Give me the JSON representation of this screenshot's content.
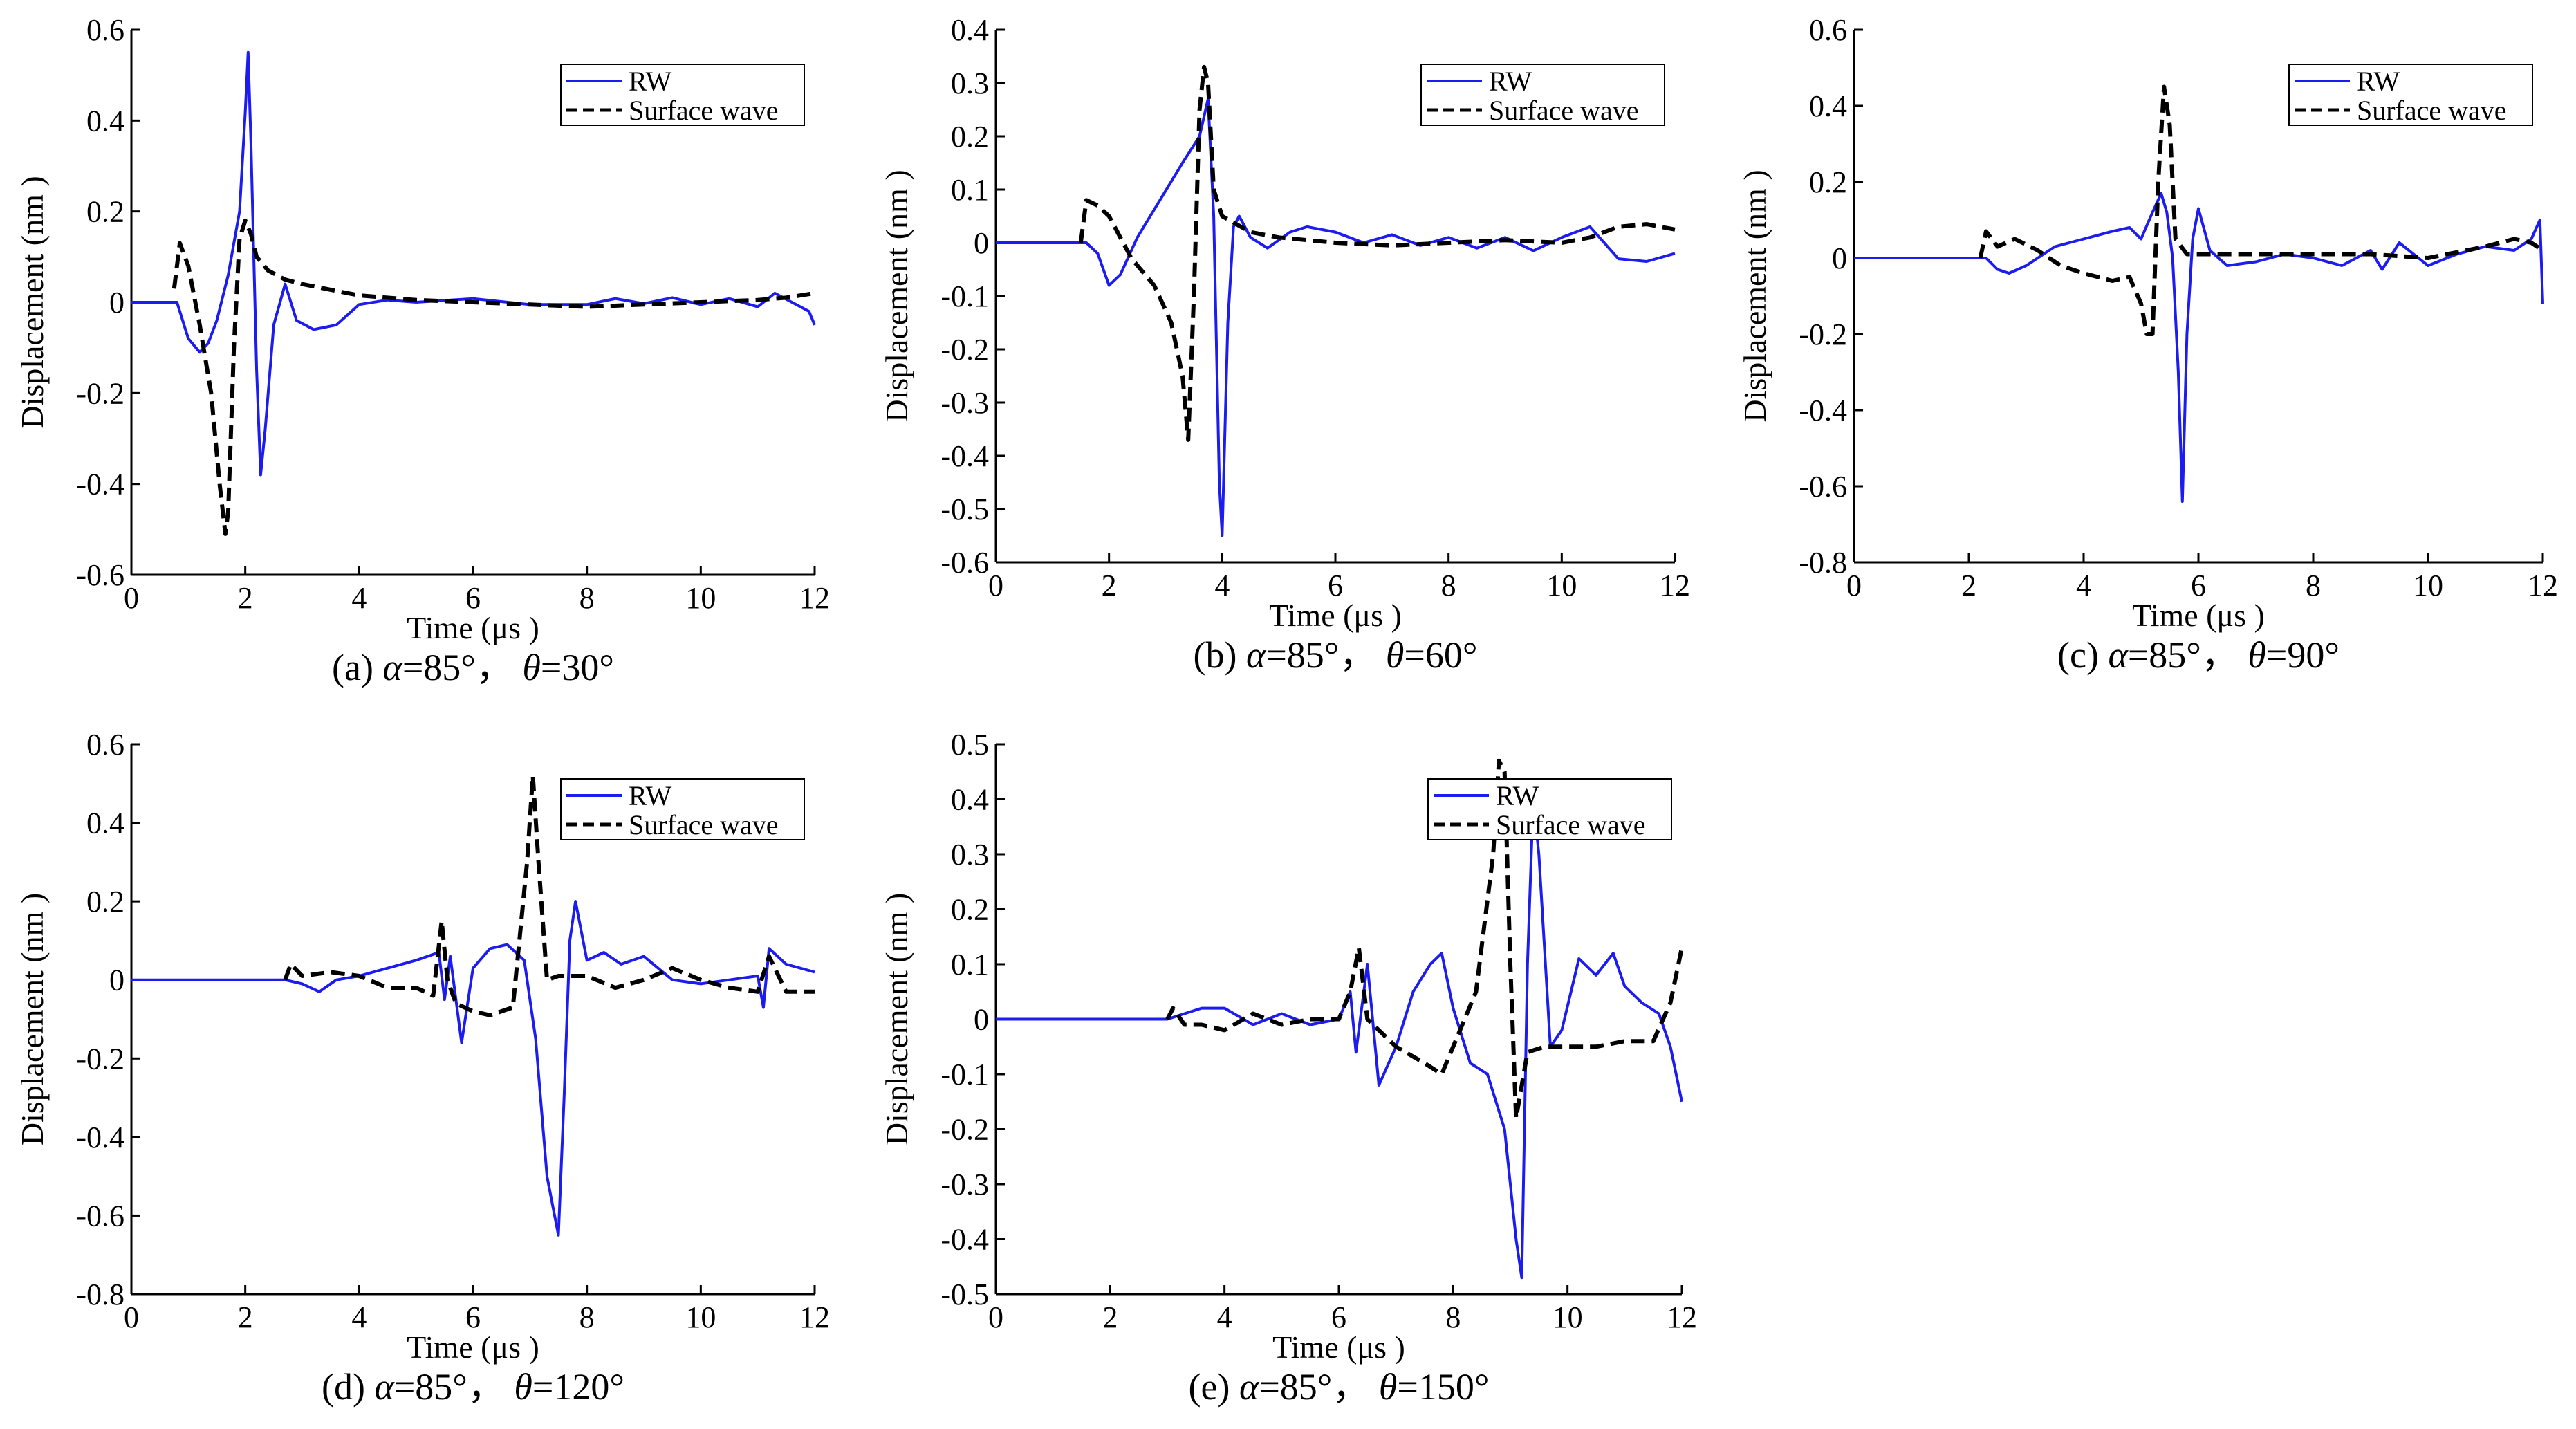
{
  "colors": {
    "rw": "#1c1cf0",
    "surface": "#000000",
    "axis": "#000000"
  },
  "chart_data": [
    {
      "type": "line",
      "caption_prefix": "(a) ",
      "caption_alpha": "α",
      "caption_mid": "=85°，  ",
      "caption_theta": "θ",
      "caption_suffix": "=30°",
      "xlabel": "Time (μs )",
      "ylabel": "Displacement (nm )",
      "xlim": [
        0,
        12
      ],
      "ylim": [
        -0.6,
        0.6
      ],
      "xticks": [
        0,
        2,
        4,
        6,
        8,
        10,
        12
      ],
      "xtick_labels": [
        "0",
        "2",
        "4",
        "6",
        "8",
        "10",
        "12"
      ],
      "yticks": [
        -0.6,
        -0.4,
        -0.2,
        0,
        0.2,
        0.4,
        0.6
      ],
      "ytick_labels": [
        "-0.6",
        "-0.4",
        "-0.2",
        "0",
        "0.2",
        "0.4",
        "0.6"
      ],
      "legend_position": "top-right",
      "series": [
        {
          "name": "RW",
          "style": "solid",
          "x": [
            0,
            0.8,
            1.0,
            1.2,
            1.35,
            1.5,
            1.7,
            1.9,
            2.0,
            2.05,
            2.1,
            2.2,
            2.27,
            2.35,
            2.5,
            2.7,
            2.9,
            3.2,
            3.6,
            4.0,
            4.5,
            5,
            6,
            7,
            8,
            8.5,
            9,
            9.5,
            10,
            10.5,
            11,
            11.3,
            11.6,
            11.9,
            12
          ],
          "values": [
            0,
            0,
            -0.08,
            -0.11,
            -0.09,
            -0.04,
            0.06,
            0.2,
            0.42,
            0.55,
            0.35,
            -0.15,
            -0.38,
            -0.28,
            -0.05,
            0.04,
            -0.04,
            -0.06,
            -0.05,
            -0.005,
            0.005,
            0,
            0.008,
            -0.005,
            -0.005,
            0.008,
            -0.003,
            0.01,
            -0.005,
            0.008,
            -0.01,
            0.02,
            0,
            -0.02,
            -0.05
          ]
        },
        {
          "name": "Surface wave",
          "style": "dashed",
          "x": [
            0.75,
            0.85,
            1.0,
            1.2,
            1.4,
            1.55,
            1.65,
            1.7,
            1.8,
            1.9,
            2.0,
            2.1,
            2.2,
            2.4,
            2.7,
            3.0,
            4.0,
            5,
            6,
            7,
            8,
            9,
            10,
            11,
            11.5,
            12
          ],
          "values": [
            0.03,
            0.13,
            0.08,
            -0.05,
            -0.2,
            -0.4,
            -0.51,
            -0.46,
            -0.1,
            0.14,
            0.18,
            0.15,
            0.1,
            0.07,
            0.05,
            0.04,
            0.015,
            0.005,
            0,
            -0.005,
            -0.01,
            -0.005,
            0,
            0.005,
            0.01,
            0.02
          ]
        }
      ]
    },
    {
      "type": "line",
      "caption_prefix": "(b) ",
      "caption_alpha": "α",
      "caption_mid": "=85°，  ",
      "caption_theta": "θ",
      "caption_suffix": "=60°",
      "xlabel": "Time (μs )",
      "ylabel": "Displacement (nm )",
      "xlim": [
        0,
        12
      ],
      "ylim": [
        -0.6,
        0.4
      ],
      "xticks": [
        0,
        2,
        4,
        6,
        8,
        10,
        12
      ],
      "xtick_labels": [
        "0",
        "2",
        "4",
        "6",
        "8",
        "10",
        "12"
      ],
      "yticks": [
        -0.6,
        -0.5,
        -0.4,
        -0.3,
        -0.2,
        -0.1,
        0,
        0.1,
        0.2,
        0.3,
        0.4
      ],
      "ytick_labels": [
        "-0.6",
        "-0.5",
        "-0.4",
        "-0.3",
        "-0.2",
        "-0.1",
        "0",
        "0.1",
        "0.2",
        "0.3",
        "0.4"
      ],
      "legend_position": "top-right",
      "series": [
        {
          "name": "RW",
          "style": "solid",
          "x": [
            0,
            1.6,
            1.8,
            2.0,
            2.2,
            2.5,
            2.9,
            3.3,
            3.6,
            3.75,
            3.85,
            3.95,
            4.0,
            4.1,
            4.2,
            4.3,
            4.5,
            4.8,
            5.2,
            5.5,
            6,
            6.5,
            7,
            7.5,
            8,
            8.5,
            9,
            9.5,
            10,
            10.5,
            11,
            11.5,
            12
          ],
          "values": [
            0,
            0,
            -0.02,
            -0.08,
            -0.06,
            0.01,
            0.08,
            0.15,
            0.2,
            0.27,
            0.05,
            -0.45,
            -0.55,
            -0.15,
            0.03,
            0.05,
            0.01,
            -0.01,
            0.02,
            0.03,
            0.02,
            0.0,
            0.015,
            -0.005,
            0.01,
            -0.01,
            0.01,
            -0.015,
            0.01,
            0.03,
            -0.03,
            -0.035,
            -0.02
          ]
        },
        {
          "name": "Surface wave",
          "style": "dashed",
          "x": [
            1.5,
            1.6,
            1.8,
            2.0,
            2.4,
            2.8,
            3.1,
            3.3,
            3.4,
            3.5,
            3.6,
            3.68,
            3.75,
            3.85,
            4.0,
            4.5,
            5,
            6,
            7,
            8,
            9,
            10,
            10.5,
            11,
            11.5,
            12
          ],
          "values": [
            0.0,
            0.08,
            0.07,
            0.05,
            -0.03,
            -0.08,
            -0.15,
            -0.25,
            -0.37,
            -0.1,
            0.25,
            0.33,
            0.3,
            0.1,
            0.05,
            0.02,
            0.01,
            0,
            -0.005,
            0,
            0.005,
            0,
            0.01,
            0.03,
            0.035,
            0.025
          ]
        }
      ]
    },
    {
      "type": "line",
      "caption_prefix": "(c) ",
      "caption_alpha": "α",
      "caption_mid": "=85°，  ",
      "caption_theta": "θ",
      "caption_suffix": "=90°",
      "xlabel": "Time (μs )",
      "ylabel": "Displacement (nm )",
      "xlim": [
        0,
        12
      ],
      "ylim": [
        -0.8,
        0.6
      ],
      "xticks": [
        0,
        2,
        4,
        6,
        8,
        10,
        12
      ],
      "xtick_labels": [
        "0",
        "2",
        "4",
        "6",
        "8",
        "10",
        "12"
      ],
      "yticks": [
        -0.8,
        -0.6,
        -0.4,
        -0.2,
        0,
        0.2,
        0.4,
        0.6
      ],
      "ytick_labels": [
        "-0.8",
        "-0.6",
        "-0.4",
        "-0.2",
        "0",
        "0.2",
        "0.4",
        "0.6"
      ],
      "legend_position": "top-right",
      "series": [
        {
          "name": "RW",
          "style": "solid",
          "x": [
            0,
            2.3,
            2.5,
            2.7,
            3.0,
            3.5,
            4.0,
            4.5,
            4.8,
            5.0,
            5.2,
            5.35,
            5.45,
            5.55,
            5.65,
            5.72,
            5.8,
            5.9,
            6.0,
            6.2,
            6.5,
            7,
            7.5,
            8,
            8.5,
            9,
            9.2,
            9.5,
            10,
            10.5,
            11,
            11.5,
            11.8,
            11.95,
            12.0
          ],
          "values": [
            0,
            0,
            -0.03,
            -0.04,
            -0.02,
            0.03,
            0.05,
            0.07,
            0.08,
            0.05,
            0.12,
            0.17,
            0.12,
            0.0,
            -0.3,
            -0.64,
            -0.2,
            0.05,
            0.13,
            0.02,
            -0.02,
            -0.01,
            0.01,
            0.0,
            -0.02,
            0.02,
            -0.03,
            0.04,
            -0.02,
            0.01,
            0.03,
            0.02,
            0.05,
            0.1,
            -0.12
          ]
        },
        {
          "name": "Surface wave",
          "style": "dashed",
          "x": [
            2.2,
            2.3,
            2.5,
            2.8,
            3.2,
            3.6,
            4.0,
            4.5,
            4.8,
            5.0,
            5.1,
            5.2,
            5.3,
            5.4,
            5.5,
            5.6,
            5.8,
            6,
            7,
            8,
            9,
            10,
            11,
            11.5,
            11.8,
            12
          ],
          "values": [
            0.0,
            0.07,
            0.03,
            0.05,
            0.02,
            -0.02,
            -0.04,
            -0.06,
            -0.05,
            -0.12,
            -0.2,
            -0.2,
            0.2,
            0.45,
            0.35,
            0.05,
            0.01,
            0.01,
            0.01,
            0.01,
            0.01,
            0.0,
            0.03,
            0.05,
            0.04,
            0.02
          ]
        }
      ]
    },
    {
      "type": "line",
      "caption_prefix": "(d) ",
      "caption_alpha": "α",
      "caption_mid": "=85°，  ",
      "caption_theta": "θ",
      "caption_suffix": "=120°",
      "xlabel": "Time (μs )",
      "ylabel": "Displacement (nm )",
      "xlim": [
        0,
        12
      ],
      "ylim": [
        -0.8,
        0.6
      ],
      "xticks": [
        0,
        2,
        4,
        6,
        8,
        10,
        12
      ],
      "xtick_labels": [
        "0",
        "2",
        "4",
        "6",
        "8",
        "10",
        "12"
      ],
      "yticks": [
        -0.8,
        -0.6,
        -0.4,
        -0.2,
        0,
        0.2,
        0.4,
        0.6
      ],
      "ytick_labels": [
        "-0.8",
        "-0.6",
        "-0.4",
        "-0.2",
        "0",
        "0.2",
        "0.4",
        "0.6"
      ],
      "legend_position": "top-right",
      "series": [
        {
          "name": "RW",
          "style": "solid",
          "x": [
            0,
            2.7,
            3.0,
            3.3,
            3.6,
            4.0,
            4.5,
            5.0,
            5.4,
            5.5,
            5.6,
            5.7,
            5.8,
            6.0,
            6.3,
            6.6,
            6.9,
            7.1,
            7.3,
            7.5,
            7.6,
            7.7,
            7.8,
            8.0,
            8.3,
            8.6,
            9.0,
            9.5,
            10,
            10.5,
            11,
            11.1,
            11.2,
            11.5,
            12
          ],
          "values": [
            0,
            0,
            -0.01,
            -0.03,
            0.0,
            0.01,
            0.03,
            0.05,
            0.07,
            -0.05,
            0.06,
            -0.05,
            -0.16,
            0.03,
            0.08,
            0.09,
            0.05,
            -0.15,
            -0.5,
            -0.65,
            -0.3,
            0.1,
            0.2,
            0.05,
            0.07,
            0.04,
            0.06,
            0.0,
            -0.01,
            0.0,
            0.01,
            -0.07,
            0.08,
            0.04,
            0.02
          ]
        },
        {
          "name": "Surface wave",
          "style": "dashed",
          "x": [
            2.7,
            2.8,
            3.0,
            3.5,
            4.0,
            4.5,
            5.0,
            5.3,
            5.45,
            5.55,
            5.7,
            6.0,
            6.3,
            6.7,
            6.95,
            7.05,
            7.15,
            7.3,
            7.5,
            8,
            8.5,
            9,
            9.5,
            10,
            10.5,
            11,
            11.2,
            11.5,
            12
          ],
          "values": [
            0.0,
            0.04,
            0.01,
            0.02,
            0.01,
            -0.02,
            -0.02,
            -0.04,
            0.15,
            0.0,
            -0.06,
            -0.08,
            -0.09,
            -0.07,
            0.3,
            0.52,
            0.3,
            0.0,
            0.01,
            0.01,
            -0.02,
            0.0,
            0.03,
            0.0,
            -0.02,
            -0.03,
            0.06,
            -0.03,
            -0.03
          ]
        }
      ]
    },
    {
      "type": "line",
      "caption_prefix": "(e) ",
      "caption_alpha": "α",
      "caption_mid": "=85°，  ",
      "caption_theta": "θ",
      "caption_suffix": "=150°",
      "xlabel": "Time (μs )",
      "ylabel": "Displacement (nm )",
      "xlim": [
        0,
        12
      ],
      "ylim": [
        -0.5,
        0.5
      ],
      "xticks": [
        0,
        2,
        4,
        6,
        8,
        10,
        12
      ],
      "xtick_labels": [
        "0",
        "2",
        "4",
        "6",
        "8",
        "10",
        "12"
      ],
      "yticks": [
        -0.5,
        -0.4,
        -0.3,
        -0.2,
        -0.1,
        0,
        0.1,
        0.2,
        0.3,
        0.4,
        0.5
      ],
      "ytick_labels": [
        "-0.5",
        "-0.4",
        "-0.3",
        "-0.2",
        "-0.1",
        "0",
        "0.1",
        "0.2",
        "0.3",
        "0.4",
        "0.5"
      ],
      "legend_position": "top-right",
      "series": [
        {
          "name": "RW",
          "style": "solid",
          "x": [
            0,
            3.0,
            3.3,
            3.6,
            4.0,
            4.5,
            5.0,
            5.5,
            6.0,
            6.2,
            6.3,
            6.5,
            6.7,
            7.0,
            7.3,
            7.6,
            7.8,
            8.0,
            8.3,
            8.6,
            8.9,
            9.1,
            9.2,
            9.3,
            9.4,
            9.5,
            9.7,
            9.9,
            10.2,
            10.5,
            10.8,
            11.0,
            11.3,
            11.6,
            11.8,
            12.0
          ],
          "values": [
            0,
            0,
            0.01,
            0.02,
            0.02,
            -0.01,
            0.01,
            -0.01,
            0.0,
            0.05,
            -0.06,
            0.1,
            -0.12,
            -0.05,
            0.05,
            0.1,
            0.12,
            0.02,
            -0.08,
            -0.1,
            -0.2,
            -0.4,
            -0.47,
            0.1,
            0.4,
            0.3,
            -0.05,
            -0.02,
            0.11,
            0.08,
            0.12,
            0.06,
            0.03,
            0.01,
            -0.05,
            -0.15
          ]
        },
        {
          "name": "Surface wave",
          "style": "dashed",
          "x": [
            3.0,
            3.1,
            3.3,
            3.6,
            4.0,
            4.5,
            5.0,
            5.5,
            6.0,
            6.2,
            6.35,
            6.5,
            6.7,
            7.0,
            7.5,
            7.8,
            8.0,
            8.4,
            8.7,
            8.8,
            8.9,
            9.0,
            9.1,
            9.3,
            9.6,
            10,
            10.5,
            11,
            11.5,
            11.8,
            12.0
          ],
          "values": [
            0.0,
            0.02,
            -0.01,
            -0.01,
            -0.02,
            0.01,
            -0.01,
            0.0,
            0.0,
            0.05,
            0.13,
            0.0,
            -0.02,
            -0.05,
            -0.08,
            -0.1,
            -0.05,
            0.05,
            0.3,
            0.47,
            0.45,
            0.1,
            -0.18,
            -0.06,
            -0.05,
            -0.05,
            -0.05,
            -0.04,
            -0.04,
            0.03,
            0.13
          ]
        }
      ]
    }
  ]
}
